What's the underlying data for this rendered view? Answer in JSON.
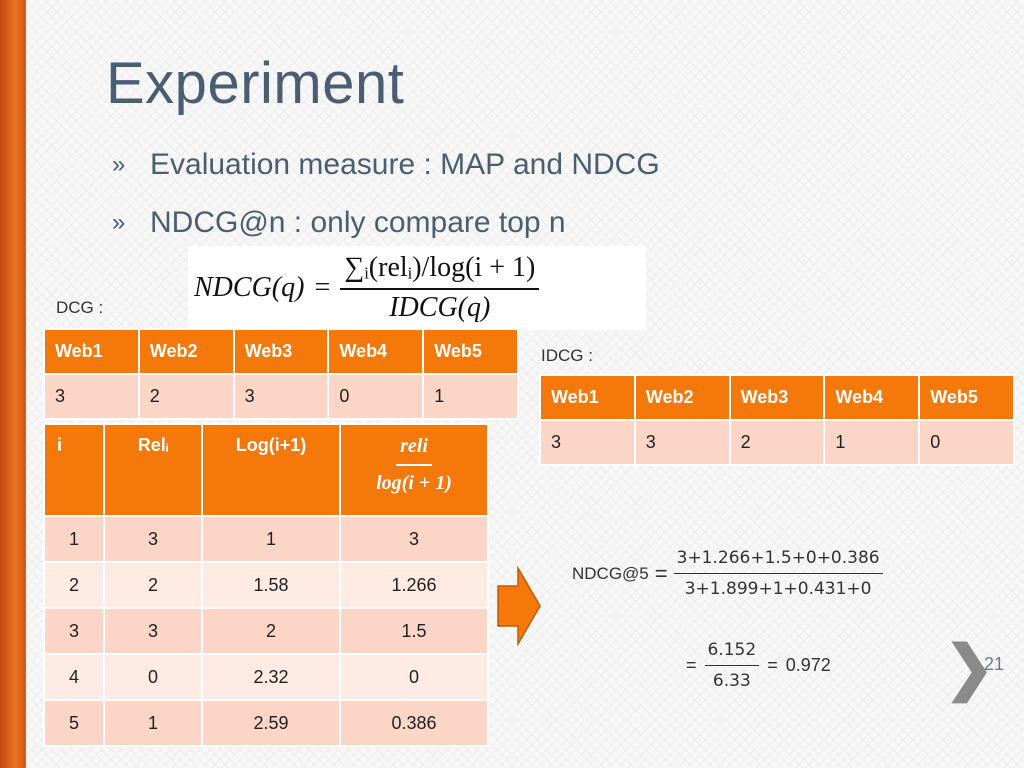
{
  "slide": {
    "title": "Experiment",
    "bullet_marker": "»",
    "bullets": [
      "Evaluation measure : MAP and NDCG",
      "NDCG@n : only compare top n"
    ],
    "formula": {
      "lhs": "NDCG(q)",
      "equals": "=",
      "numerator": "∑ᵢ(relᵢ)/log(i + 1)",
      "denominator": "IDCG(q)"
    },
    "dcg_label": "DCG :",
    "idcg_label": "IDCG :",
    "dcg_table": {
      "headers": [
        "Web1",
        "Web2",
        "Web3",
        "Web4",
        "Web5"
      ],
      "values": [
        "3",
        "2",
        "3",
        "0",
        "1"
      ]
    },
    "idcg_table": {
      "headers": [
        "Web1",
        "Web2",
        "Web3",
        "Web4",
        "Web5"
      ],
      "values": [
        "3",
        "3",
        "2",
        "1",
        "0"
      ]
    },
    "calc_table": {
      "headers": [
        "i",
        "Relᵢ",
        "Log(i+1)"
      ],
      "fraction_header": {
        "numerator": "reli",
        "denominator": "log(i + 1)"
      },
      "rows": [
        [
          "1",
          "3",
          "1",
          "3"
        ],
        [
          "2",
          "2",
          "1.58",
          "1.266"
        ],
        [
          "3",
          "3",
          "2",
          "1.5"
        ],
        [
          "4",
          "0",
          "2.32",
          "0"
        ],
        [
          "5",
          "1",
          "2.59",
          "0.386"
        ]
      ]
    },
    "ndcg": {
      "label": "NDCG@5",
      "equals": "=",
      "numerator": "3+1.266+1.5+0+0.386",
      "denominator": "3+1.899+1+0.431+0",
      "simplified_numerator": "6.152",
      "simplified_denominator": "6.33",
      "result": "0.972"
    },
    "page_number": "21",
    "colors": {
      "accent": "#f4780a",
      "title": "#4a5e71",
      "row_dark": "#fbd5c6",
      "row_light": "#fdebe4"
    }
  }
}
